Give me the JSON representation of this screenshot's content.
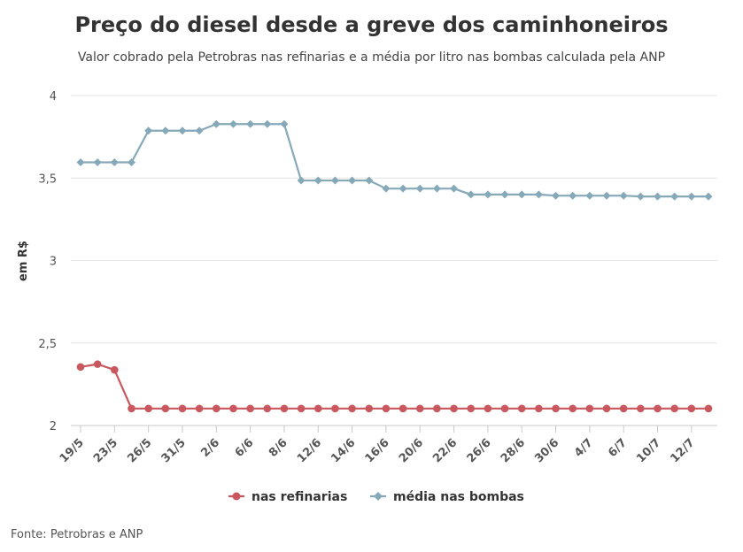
{
  "chart_data": {
    "type": "line",
    "title": "Preço do diesel desde a greve dos caminhoneiros",
    "subtitle": "Valor cobrado pela Petrobras nas refinarias e a média por litro nas bombas calculada pela ANP",
    "ylabel": "em R$",
    "xlabel": "",
    "ylim": [
      2,
      4
    ],
    "yticks": [
      "2",
      "2,5",
      "3",
      "3,5",
      "4"
    ],
    "ytick_values": [
      2,
      2.5,
      3,
      3.5,
      4
    ],
    "x_tick_labels": [
      "19/5",
      "23/5",
      "26/5",
      "31/5",
      "2/6",
      "6/6",
      "8/6",
      "12/6",
      "14/6",
      "16/6",
      "20/6",
      "22/6",
      "26/6",
      "28/6",
      "30/6",
      "4/7",
      "6/7",
      "10/7",
      "12/7"
    ],
    "grid": true,
    "legend_position": "bottom",
    "series": [
      {
        "name": "nas refinarias",
        "color": "#c9575e",
        "marker": "circle",
        "values": [
          2.355,
          2.372,
          2.337,
          2.103,
          2.103,
          2.103,
          2.103,
          2.103,
          2.103,
          2.103,
          2.103,
          2.103,
          2.103,
          2.103,
          2.103,
          2.103,
          2.103,
          2.103,
          2.103,
          2.103,
          2.103,
          2.103,
          2.103,
          2.103,
          2.103,
          2.103,
          2.103,
          2.103,
          2.103,
          2.103,
          2.103,
          2.103,
          2.103,
          2.103,
          2.103,
          2.103,
          2.103,
          2.103
        ]
      },
      {
        "name": "média nas bombas",
        "color": "#86a9b9",
        "marker": "diamond",
        "values": [
          3.595,
          3.595,
          3.595,
          3.595,
          3.787,
          3.787,
          3.787,
          3.787,
          3.827,
          3.827,
          3.827,
          3.827,
          3.827,
          3.485,
          3.485,
          3.485,
          3.485,
          3.485,
          3.436,
          3.436,
          3.436,
          3.436,
          3.436,
          3.4,
          3.4,
          3.4,
          3.4,
          3.4,
          3.393,
          3.393,
          3.393,
          3.393,
          3.393,
          3.388,
          3.388,
          3.388,
          3.388,
          3.388
        ]
      }
    ],
    "source": "Fonte: Petrobras e ANP"
  }
}
